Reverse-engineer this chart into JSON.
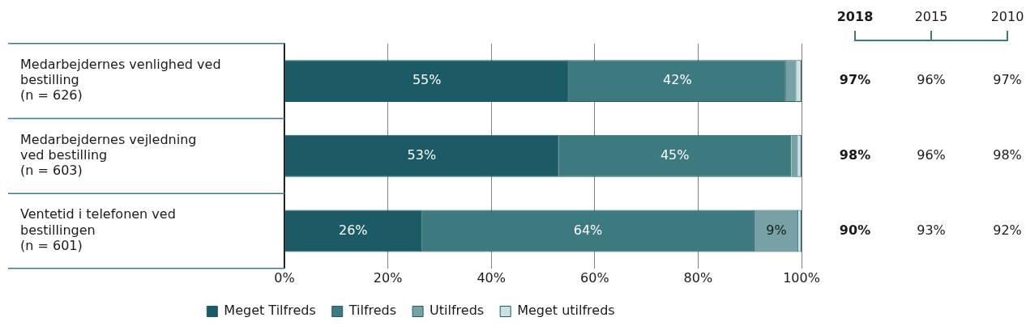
{
  "chart_data": {
    "type": "bar",
    "orientation": "horizontal",
    "stacked": true,
    "categories": [
      "Medarbejdernes venlighed ved\nbestilling\n(n = 626)",
      "Medarbejdernes vejledning\nved bestilling\n(n = 603)",
      "Ventetid i telefonen ved\nbestillingen\n(n = 601)"
    ],
    "series": [
      {
        "name": "Meget Tilfreds",
        "color": "#1a5b65",
        "values": [
          55,
          53,
          26.5
        ],
        "value_labels": [
          "55%",
          "53%",
          "26%"
        ]
      },
      {
        "name": "Tilfreds",
        "color": "#3c7a80",
        "values": [
          42,
          45,
          64.4
        ],
        "value_labels": [
          "42%",
          "45%",
          "64%"
        ]
      },
      {
        "name": "Utilfreds",
        "color": "#78a1a5",
        "values": [
          2,
          1.3,
          8.5
        ],
        "value_labels": [
          null,
          null,
          "9%"
        ]
      },
      {
        "name": "Meget utilfreds",
        "color": "#c9e1e3",
        "values": [
          1,
          0.7,
          0.6
        ],
        "value_labels": [
          null,
          null,
          null
        ]
      }
    ],
    "xlim": [
      0,
      100
    ],
    "xticks": [
      {
        "value": 0,
        "label": "0%"
      },
      {
        "value": 20,
        "label": "20%"
      },
      {
        "value": 40,
        "label": "40%"
      },
      {
        "value": 60,
        "label": "60%"
      },
      {
        "value": 80,
        "label": "80%"
      },
      {
        "value": 100,
        "label": "100%"
      }
    ],
    "grid": "x",
    "legend": "bottom",
    "annotations": [
      "2018",
      "2015",
      "2010",
      "97%",
      "96%",
      "97%",
      "98%",
      "96%",
      "98%",
      "90%",
      "93%",
      "92%"
    ]
  }
}
